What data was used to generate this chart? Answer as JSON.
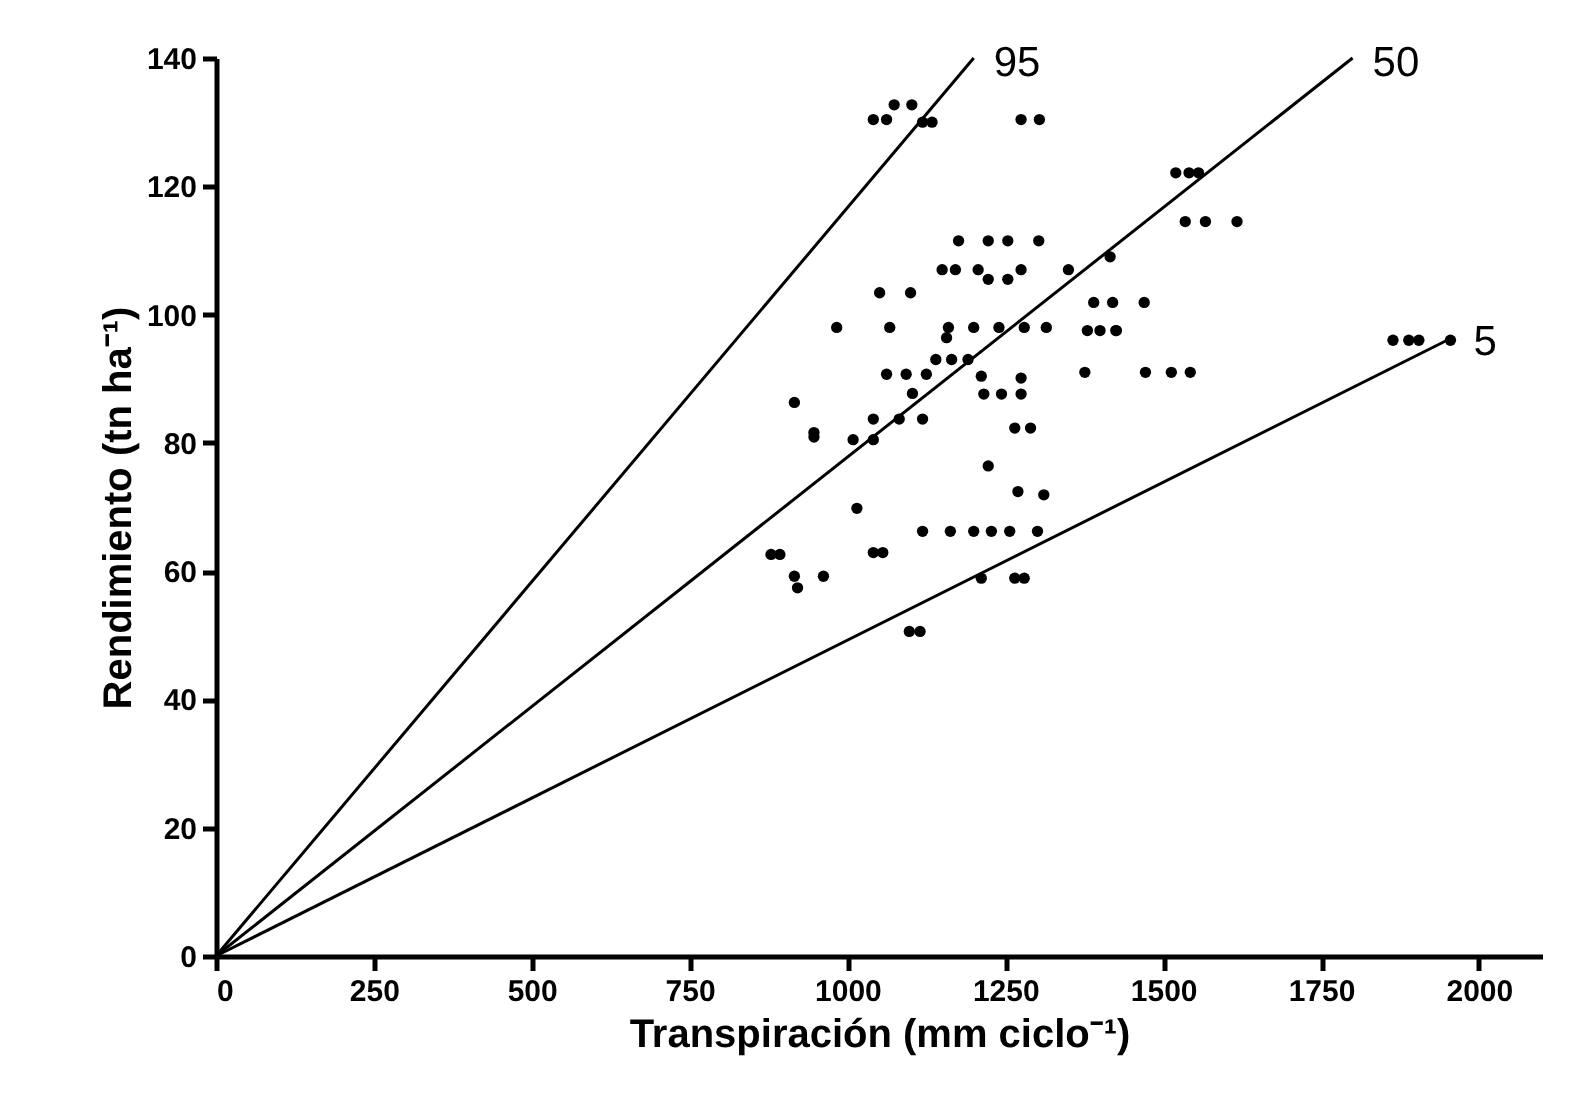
{
  "chart_data": {
    "type": "scatter",
    "xlabel": "Transpiración (mm ciclo⁻¹)",
    "ylabel": "Rendimiento (tn ha⁻¹)",
    "xlim": [
      0,
      2100
    ],
    "ylim": [
      0,
      140
    ],
    "xticks": [
      0,
      250,
      500,
      750,
      1000,
      1250,
      1500,
      1750,
      2000
    ],
    "yticks": [
      0,
      20,
      40,
      60,
      80,
      100,
      120,
      140
    ],
    "grid": false,
    "marker": "circle",
    "series": [
      {
        "color": "#000000",
        "x": [
          1074,
          1102,
          1041,
          1062,
          1119,
          1134,
          1275,
          1304,
          1520,
          1541,
          1556,
          1535,
          1567,
          1617,
          1176,
          1223,
          1254,
          1303,
          1150,
          1171,
          1207,
          1223,
          1254,
          1275,
          1350,
          1416,
          1051,
          1100,
          1390,
          1420,
          1470,
          983,
          1067,
          1160,
          1200,
          1240,
          1280,
          1315,
          1157,
          1380,
          1400,
          1425,
          1062,
          1093,
          1125,
          1140,
          1165,
          1191,
          1212,
          1376,
          1472,
          1513,
          1543,
          1103,
          916,
          1216,
          1244,
          1275,
          1275,
          1041,
          1082,
          1119,
          947,
          947,
          1009,
          1041,
          1265,
          1290,
          1223,
          1270,
          1311,
          1015,
          1119,
          1163,
          1200,
          1228,
          1257,
          1301,
          879,
          893,
          1041,
          1056,
          916,
          962,
          921,
          1212,
          1265,
          1280,
          1098,
          1115,
          1864,
          1889,
          1905,
          1955,
          1426
        ],
        "values": [
          132.7,
          132.7,
          130.4,
          130.4,
          130,
          130,
          130.4,
          130.4,
          122.1,
          122.1,
          122.1,
          114.5,
          114.5,
          114.5,
          111.5,
          111.5,
          111.5,
          111.5,
          107,
          107,
          107,
          105.5,
          105.5,
          107,
          107,
          109,
          103.4,
          103.4,
          101.9,
          101.9,
          101.9,
          98,
          98,
          98,
          98,
          98,
          98,
          98,
          96.4,
          97.5,
          97.5,
          97.5,
          90.7,
          90.7,
          90.7,
          93,
          93,
          93,
          90.4,
          91,
          91,
          91,
          91,
          87.7,
          86.3,
          87.6,
          87.6,
          87.6,
          90.1,
          83.7,
          83.7,
          83.7,
          81.6,
          80.9,
          80.5,
          80.5,
          82.3,
          82.3,
          76.4,
          72.4,
          71.9,
          69.8,
          66.2,
          66.2,
          66.2,
          66.2,
          66.2,
          66.2,
          62.6,
          62.6,
          62.9,
          62.9,
          59.2,
          59.2,
          57.4,
          58.9,
          58.9,
          58.9,
          50.6,
          50.6,
          96,
          96,
          96,
          96,
          97.5
        ]
      },
      {
        "type": "line",
        "name": "95",
        "marker": "none",
        "color": "#000000",
        "x": [
          0,
          1200
        ],
        "values": [
          0,
          140
        ]
      },
      {
        "type": "line",
        "name": "50",
        "marker": "none",
        "color": "#000000",
        "x": [
          0,
          1800
        ],
        "values": [
          0,
          140
        ]
      },
      {
        "type": "line",
        "name": "5",
        "marker": "none",
        "color": "#000000",
        "x": [
          0,
          1960
        ],
        "values": [
          0,
          96.5
        ]
      }
    ]
  }
}
